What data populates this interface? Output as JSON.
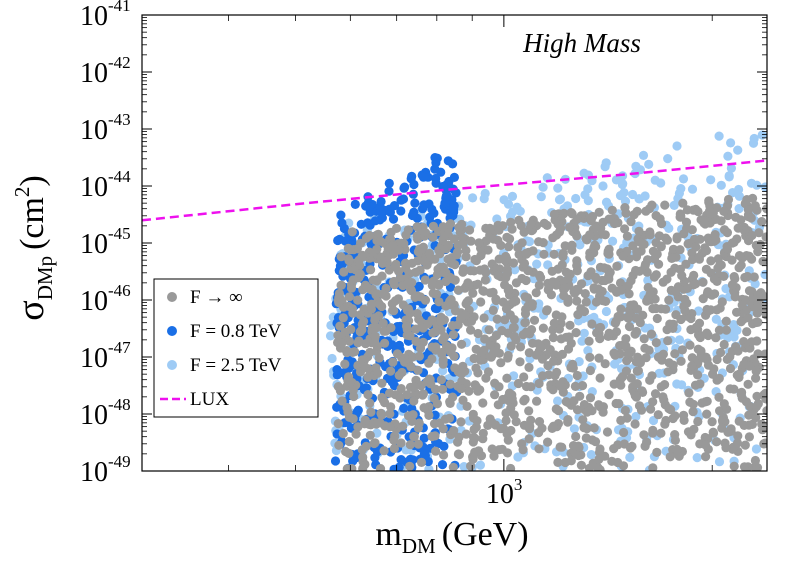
{
  "chart_data": {
    "type": "scatter",
    "title": "",
    "annotation": "High Mass",
    "xlabel": {
      "main": "m",
      "sub": "DM",
      "unit": "(GeV)"
    },
    "ylabel": {
      "main": "σ",
      "sub": "DMp",
      "unit_before": "(cm",
      "unit_sup": "2",
      "unit_after": ")"
    },
    "x_scale": "log",
    "y_scale": "log",
    "xlim": [
      300,
      2400
    ],
    "ylim": [
      1e-49,
      1e-41
    ],
    "x_tick_labels": [
      {
        "value": 1000,
        "base": "10",
        "exp": "3"
      }
    ],
    "x_minor_ticks": [
      300,
      400,
      500,
      600,
      700,
      800,
      900,
      2000
    ],
    "y_tick_labels": [
      {
        "value": 1e-41,
        "base": "10",
        "exp": "-41"
      },
      {
        "value": 1e-42,
        "base": "10",
        "exp": "-42"
      },
      {
        "value": 1e-43,
        "base": "10",
        "exp": "-43"
      },
      {
        "value": 1e-44,
        "base": "10",
        "exp": "-44"
      },
      {
        "value": 1e-45,
        "base": "10",
        "exp": "-45"
      },
      {
        "value": 1e-46,
        "base": "10",
        "exp": "-46"
      },
      {
        "value": 1e-47,
        "base": "10",
        "exp": "-47"
      },
      {
        "value": 1e-48,
        "base": "10",
        "exp": "-48"
      },
      {
        "value": 1e-49,
        "base": "10",
        "exp": "-49"
      }
    ],
    "legend_position": "bottom-left",
    "series": [
      {
        "name": "F = 2.5 TeV",
        "kind": "scatter",
        "color": "#9ecbf5",
        "region": {
          "x_min": 560,
          "x_max": 2400,
          "y_min": 1e-49,
          "y_max_at_xmin": 2e-45,
          "y_max_at_xmax": 1.2e-43
        },
        "count": 550
      },
      {
        "name": "F = 0.8 TeV",
        "kind": "scatter",
        "color": "#1a6fe6",
        "region": {
          "x_min": 570,
          "x_max": 855,
          "y_min": 1e-49,
          "y_max_at_xmin": 3e-45,
          "y_max_at_xmax": 6e-44
        },
        "count": 420
      },
      {
        "name": "F → ∞",
        "kind": "scatter",
        "color": "#999999",
        "region": {
          "x_min": 575,
          "x_max": 2400,
          "y_min": 1e-49,
          "y_max_at_xmin": 1.5e-45,
          "y_max_at_xmax": 7e-45
        },
        "count": 1500
      },
      {
        "name": "LUX",
        "kind": "line",
        "color": "#ee10ee",
        "dash": true,
        "x": [
          300,
          500,
          800,
          1000,
          1500,
          2400
        ],
        "y": [
          2.5e-45,
          4.8e-45,
          8.3e-45,
          1.05e-44,
          1.6e-44,
          2.8e-44
        ]
      }
    ],
    "legend": [
      {
        "label": "F → ∞",
        "color": "#999999",
        "kind": "dot"
      },
      {
        "label": "F = 0.8 TeV",
        "color": "#1a6fe6",
        "kind": "dot"
      },
      {
        "label": "F = 2.5 TeV",
        "color": "#9ecbf5",
        "kind": "dot"
      },
      {
        "label": "LUX",
        "color": "#ee10ee",
        "kind": "dash"
      }
    ]
  }
}
